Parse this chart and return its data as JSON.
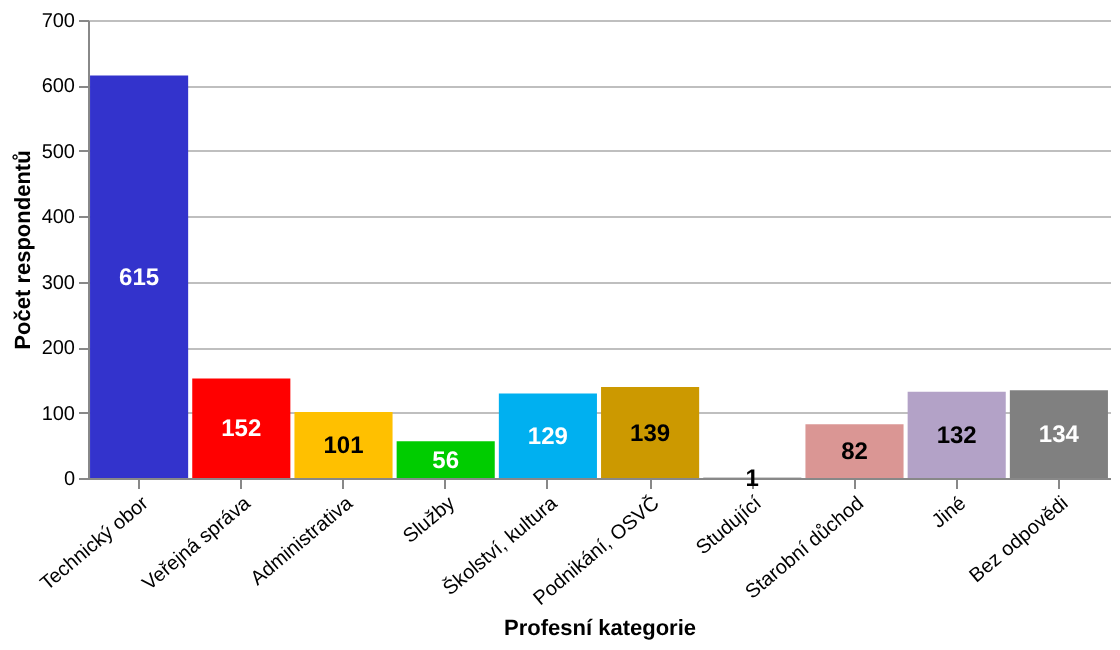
{
  "chart_data": {
    "type": "bar",
    "xlabel": "Profesní kategorie",
    "ylabel": "Počet respondentů",
    "categories": [
      "Technický obor",
      "Veřejná správa",
      "Administrativa",
      "Služby",
      "Školství, kultura",
      "Podnikání, OSVČ",
      "Studující",
      "Starobní důchod",
      "Jiné",
      "Bez odpovědi"
    ],
    "values": [
      615,
      152,
      101,
      56,
      129,
      139,
      1,
      82,
      132,
      134
    ],
    "colors": [
      "#3333cc",
      "#ff0000",
      "#ffc000",
      "#00cc00",
      "#00b0f0",
      "#cc9900",
      "#bfbfbf",
      "#da9694",
      "#b3a2c7",
      "#808080"
    ],
    "ylim": [
      0,
      700
    ],
    "yticks": [
      0,
      100,
      200,
      300,
      400,
      500,
      600,
      700
    ],
    "grid": "y",
    "data_labels": true
  }
}
